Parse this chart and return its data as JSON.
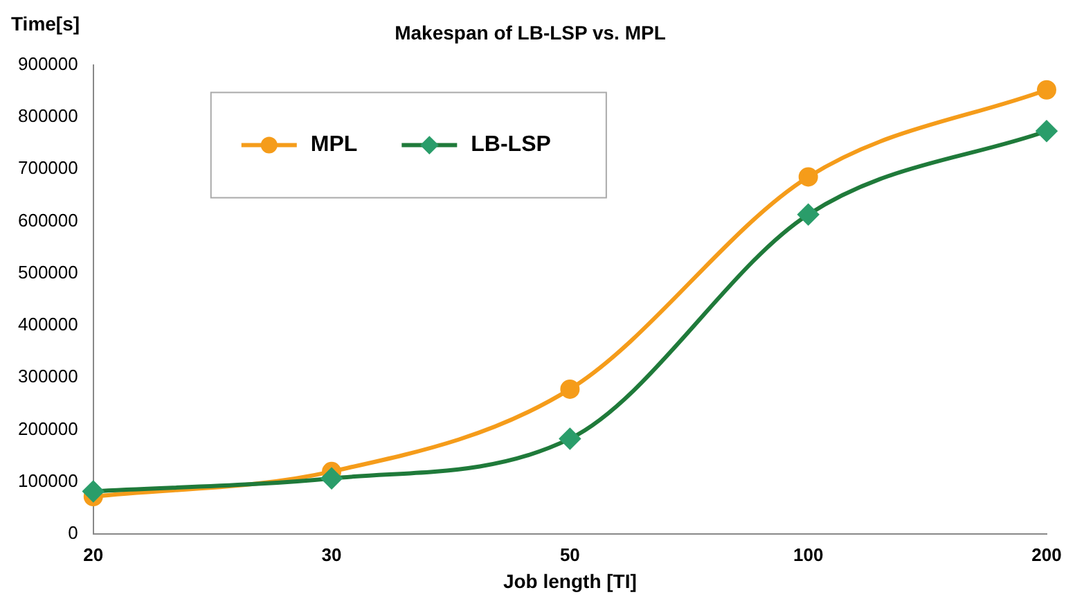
{
  "chart_data": {
    "type": "line",
    "title": "Makespan of LB-LSP vs. MPL",
    "xlabel": "Job length [TI]",
    "ylabel": "Time[s]",
    "categories": [
      "20",
      "30",
      "50",
      "100",
      "200"
    ],
    "series": [
      {
        "name": "MPL",
        "color": "#f59c1a",
        "marker": "circle",
        "values": [
          72000,
          120000,
          278000,
          685000,
          852000
        ]
      },
      {
        "name": "LB-LSP",
        "color": "#1f7a3a",
        "marker": "diamond",
        "values": [
          82000,
          107000,
          183000,
          613000,
          773000
        ]
      }
    ],
    "ylim": [
      0,
      900000
    ],
    "yticks": [
      0,
      100000,
      200000,
      300000,
      400000,
      500000,
      600000,
      700000,
      800000,
      900000
    ],
    "grid": false,
    "legend": "top left"
  }
}
